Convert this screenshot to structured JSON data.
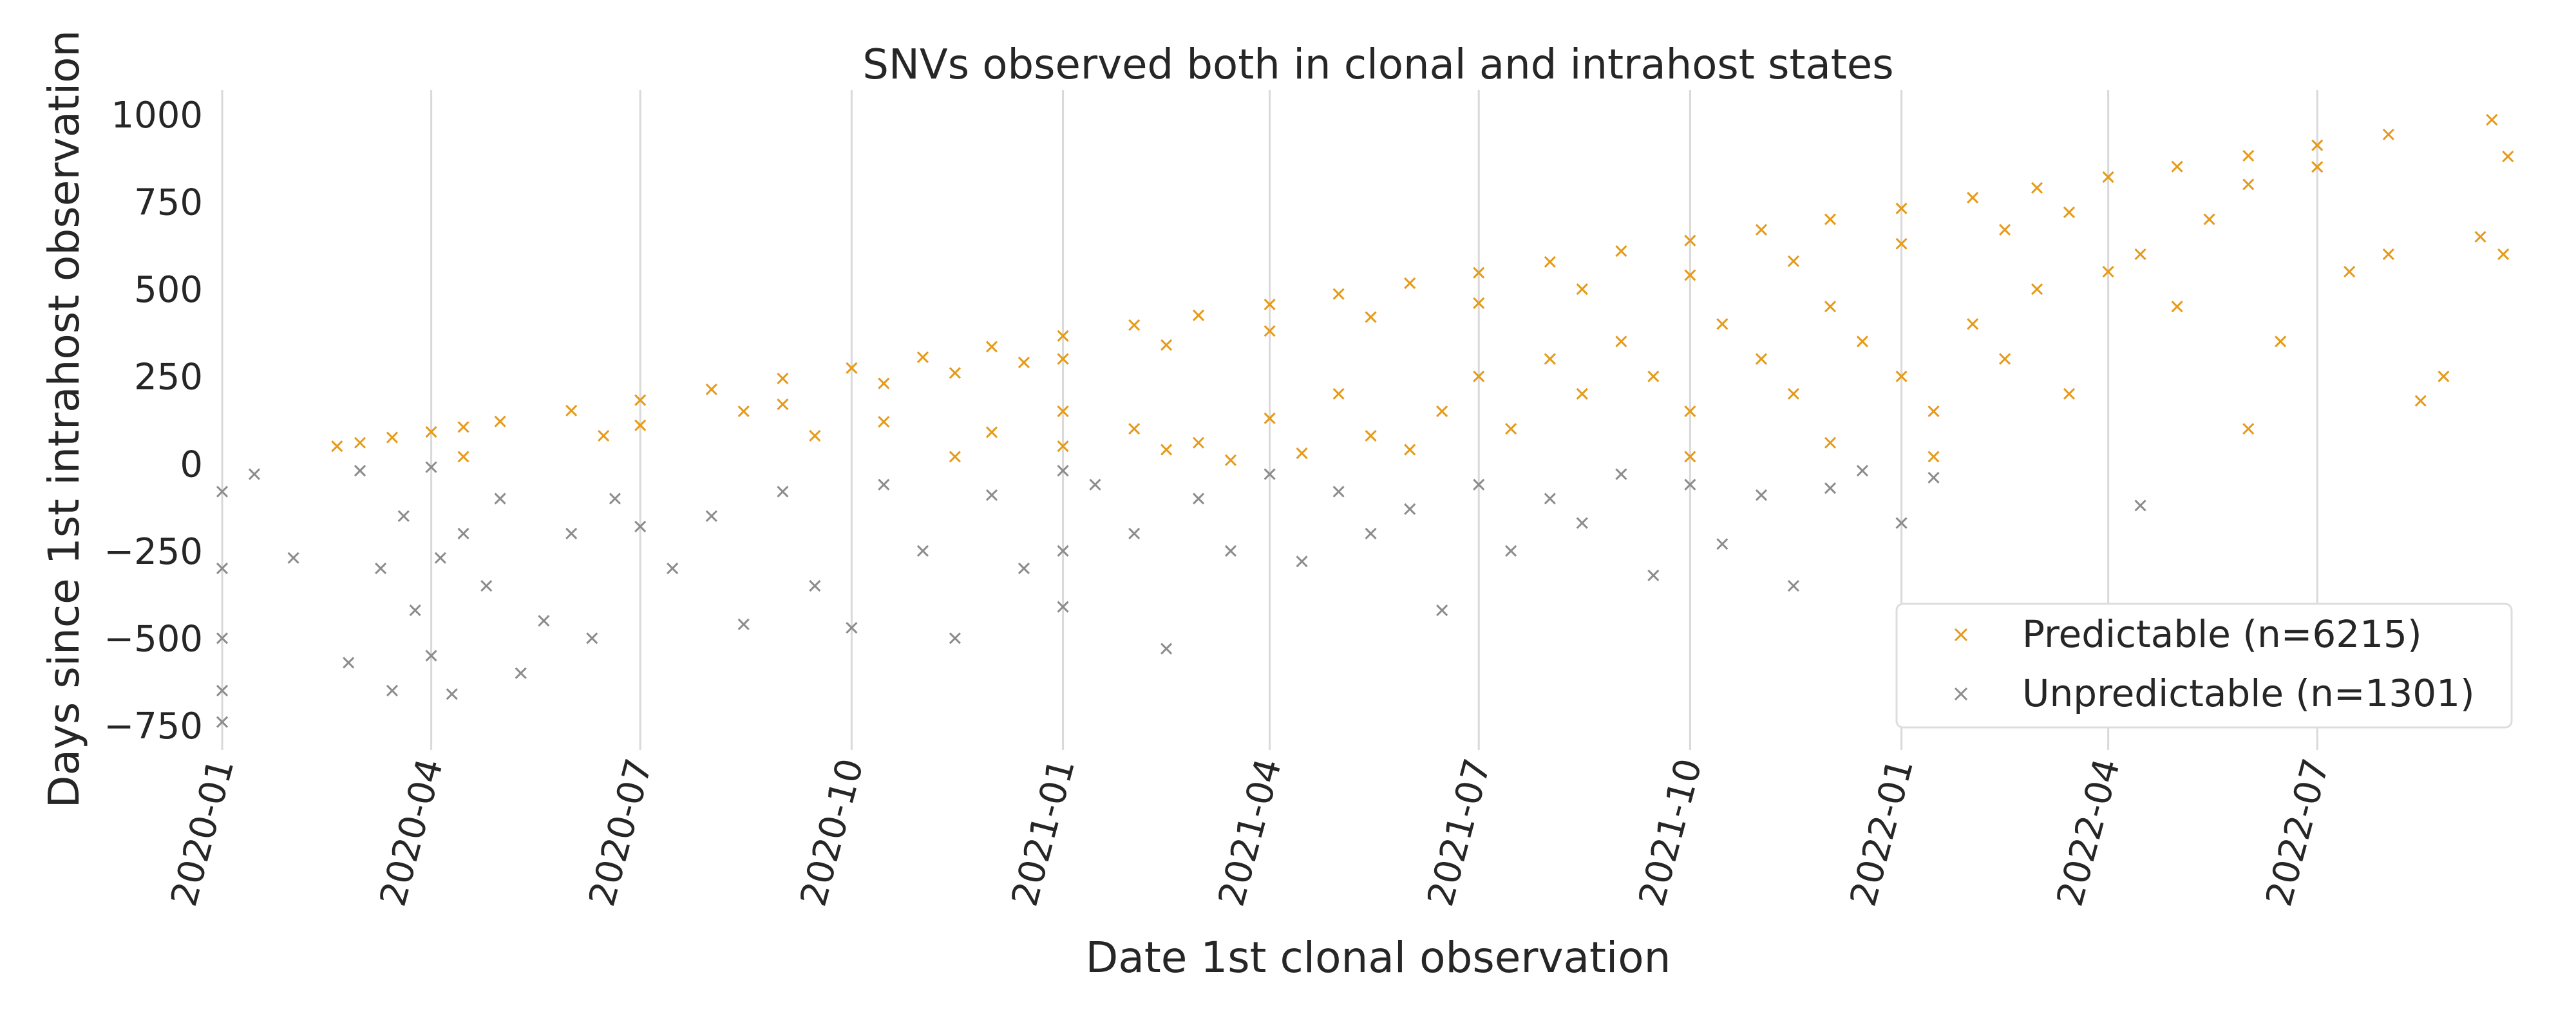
{
  "chart_data": {
    "type": "scatter",
    "title": "SNVs observed both in clonal and intrahost states",
    "xlabel": "Date 1st clonal observation",
    "ylabel": "Days since 1st intrahost observation",
    "marker": "x",
    "grid": "vertical only",
    "legend_position": "lower-right",
    "x_range": [
      "2020-01-01",
      "2022-09-25"
    ],
    "y_range": [
      -820,
      1070
    ],
    "x_ticks": [
      "2020-01",
      "2020-04",
      "2020-07",
      "2020-10",
      "2021-01",
      "2021-04",
      "2021-07",
      "2021-10",
      "2022-01",
      "2022-04",
      "2022-07"
    ],
    "y_ticks": [
      1000,
      750,
      500,
      250,
      0,
      -250,
      -500,
      -750
    ],
    "series": [
      {
        "name": "Predictable (n=6215)",
        "color": "#e69a17",
        "n": 6215,
        "points": [
          {
            "x": "2020-02-20",
            "y": 50
          },
          {
            "x": "2020-03-01",
            "y": 60
          },
          {
            "x": "2020-03-15",
            "y": 75
          },
          {
            "x": "2020-04-01",
            "y": 91
          },
          {
            "x": "2020-04-15",
            "y": 105
          },
          {
            "x": "2020-05-01",
            "y": 121
          },
          {
            "x": "2020-06-01",
            "y": 152
          },
          {
            "x": "2020-07-01",
            "y": 182
          },
          {
            "x": "2020-08-01",
            "y": 213
          },
          {
            "x": "2020-09-01",
            "y": 244
          },
          {
            "x": "2020-10-01",
            "y": 274
          },
          {
            "x": "2020-11-01",
            "y": 305
          },
          {
            "x": "2020-12-01",
            "y": 335
          },
          {
            "x": "2021-01-01",
            "y": 366
          },
          {
            "x": "2021-02-01",
            "y": 397
          },
          {
            "x": "2021-03-01",
            "y": 425
          },
          {
            "x": "2021-04-01",
            "y": 456
          },
          {
            "x": "2021-05-01",
            "y": 486
          },
          {
            "x": "2021-06-01",
            "y": 517
          },
          {
            "x": "2021-07-01",
            "y": 547
          },
          {
            "x": "2021-08-01",
            "y": 578
          },
          {
            "x": "2021-09-01",
            "y": 609
          },
          {
            "x": "2021-10-01",
            "y": 639
          },
          {
            "x": "2021-11-01",
            "y": 670
          },
          {
            "x": "2021-12-01",
            "y": 700
          },
          {
            "x": "2022-01-01",
            "y": 731
          },
          {
            "x": "2022-02-01",
            "y": 762
          },
          {
            "x": "2022-03-01",
            "y": 790
          },
          {
            "x": "2022-04-01",
            "y": 821
          },
          {
            "x": "2022-05-01",
            "y": 851
          },
          {
            "x": "2022-06-01",
            "y": 882
          },
          {
            "x": "2022-07-01",
            "y": 912
          },
          {
            "x": "2022-08-01",
            "y": 943
          },
          {
            "x": "2022-09-15",
            "y": 985
          },
          {
            "x": "2020-04-15",
            "y": 20
          },
          {
            "x": "2020-06-15",
            "y": 80
          },
          {
            "x": "2020-07-01",
            "y": 110
          },
          {
            "x": "2020-08-15",
            "y": 150
          },
          {
            "x": "2020-09-01",
            "y": 170
          },
          {
            "x": "2020-10-15",
            "y": 230
          },
          {
            "x": "2020-11-15",
            "y": 260
          },
          {
            "x": "2020-12-15",
            "y": 290
          },
          {
            "x": "2021-01-01",
            "y": 300
          },
          {
            "x": "2021-02-15",
            "y": 340
          },
          {
            "x": "2021-04-01",
            "y": 380
          },
          {
            "x": "2021-05-15",
            "y": 420
          },
          {
            "x": "2021-07-01",
            "y": 460
          },
          {
            "x": "2021-08-15",
            "y": 500
          },
          {
            "x": "2021-10-01",
            "y": 540
          },
          {
            "x": "2021-11-15",
            "y": 580
          },
          {
            "x": "2022-01-01",
            "y": 630
          },
          {
            "x": "2022-02-15",
            "y": 670
          },
          {
            "x": "2022-03-15",
            "y": 720
          },
          {
            "x": "2020-09-15",
            "y": 80
          },
          {
            "x": "2020-10-15",
            "y": 120
          },
          {
            "x": "2020-11-15",
            "y": 20
          },
          {
            "x": "2020-12-01",
            "y": 90
          },
          {
            "x": "2021-01-01",
            "y": 150
          },
          {
            "x": "2021-01-01",
            "y": 50
          },
          {
            "x": "2021-02-01",
            "y": 100
          },
          {
            "x": "2021-02-15",
            "y": 40
          },
          {
            "x": "2021-03-01",
            "y": 60
          },
          {
            "x": "2021-04-01",
            "y": 130
          },
          {
            "x": "2021-04-15",
            "y": 30
          },
          {
            "x": "2021-05-01",
            "y": 200
          },
          {
            "x": "2021-05-15",
            "y": 80
          },
          {
            "x": "2021-06-15",
            "y": 150
          },
          {
            "x": "2021-07-01",
            "y": 250
          },
          {
            "x": "2021-07-15",
            "y": 100
          },
          {
            "x": "2021-08-01",
            "y": 300
          },
          {
            "x": "2021-08-15",
            "y": 200
          },
          {
            "x": "2021-09-01",
            "y": 350
          },
          {
            "x": "2021-09-15",
            "y": 250
          },
          {
            "x": "2021-10-01",
            "y": 150
          },
          {
            "x": "2021-10-15",
            "y": 400
          },
          {
            "x": "2021-11-01",
            "y": 300
          },
          {
            "x": "2021-11-15",
            "y": 200
          },
          {
            "x": "2021-12-01",
            "y": 450
          },
          {
            "x": "2021-12-15",
            "y": 350
          },
          {
            "x": "2022-01-01",
            "y": 250
          },
          {
            "x": "2022-01-15",
            "y": 150
          },
          {
            "x": "2022-02-01",
            "y": 400
          },
          {
            "x": "2022-02-15",
            "y": 300
          },
          {
            "x": "2022-03-01",
            "y": 500
          },
          {
            "x": "2022-03-15",
            "y": 200
          },
          {
            "x": "2022-04-01",
            "y": 550
          },
          {
            "x": "2022-04-15",
            "y": 600
          },
          {
            "x": "2022-05-01",
            "y": 450
          },
          {
            "x": "2022-05-15",
            "y": 700
          },
          {
            "x": "2022-06-01",
            "y": 800
          },
          {
            "x": "2022-06-01",
            "y": 100
          },
          {
            "x": "2022-06-15",
            "y": 350
          },
          {
            "x": "2022-07-01",
            "y": 850
          },
          {
            "x": "2022-07-15",
            "y": 550
          },
          {
            "x": "2022-08-01",
            "y": 600
          },
          {
            "x": "2022-08-15",
            "y": 180
          },
          {
            "x": "2022-08-25",
            "y": 250
          },
          {
            "x": "2022-09-10",
            "y": 650
          },
          {
            "x": "2022-09-20",
            "y": 600
          },
          {
            "x": "2022-09-22",
            "y": 880
          },
          {
            "x": "2022-01-15",
            "y": 20
          },
          {
            "x": "2021-12-01",
            "y": 60
          },
          {
            "x": "2021-10-01",
            "y": 20
          },
          {
            "x": "2021-06-01",
            "y": 40
          },
          {
            "x": "2021-03-15",
            "y": 10
          }
        ]
      },
      {
        "name": "Unpredictable (n=1301)",
        "color": "#8c8c8c",
        "n": 1301,
        "points": [
          {
            "x": "2020-01-01",
            "y": -80
          },
          {
            "x": "2020-01-01",
            "y": -300
          },
          {
            "x": "2020-01-01",
            "y": -500
          },
          {
            "x": "2020-01-01",
            "y": -650
          },
          {
            "x": "2020-01-01",
            "y": -740
          },
          {
            "x": "2020-01-15",
            "y": -30
          },
          {
            "x": "2020-02-01",
            "y": -270
          },
          {
            "x": "2020-02-25",
            "y": -570
          },
          {
            "x": "2020-03-01",
            "y": -20
          },
          {
            "x": "2020-03-10",
            "y": -300
          },
          {
            "x": "2020-03-15",
            "y": -650
          },
          {
            "x": "2020-03-20",
            "y": -150
          },
          {
            "x": "2020-03-25",
            "y": -420
          },
          {
            "x": "2020-04-01",
            "y": -10
          },
          {
            "x": "2020-04-01",
            "y": -550
          },
          {
            "x": "2020-04-05",
            "y": -270
          },
          {
            "x": "2020-04-10",
            "y": -660
          },
          {
            "x": "2020-04-15",
            "y": -200
          },
          {
            "x": "2020-04-25",
            "y": -350
          },
          {
            "x": "2020-05-01",
            "y": -100
          },
          {
            "x": "2020-05-10",
            "y": -600
          },
          {
            "x": "2020-05-20",
            "y": -450
          },
          {
            "x": "2020-06-01",
            "y": -200
          },
          {
            "x": "2020-06-10",
            "y": -500
          },
          {
            "x": "2020-06-20",
            "y": -100
          },
          {
            "x": "2020-07-01",
            "y": -180
          },
          {
            "x": "2020-07-15",
            "y": -300
          },
          {
            "x": "2020-08-01",
            "y": -150
          },
          {
            "x": "2020-08-15",
            "y": -460
          },
          {
            "x": "2020-09-01",
            "y": -80
          },
          {
            "x": "2020-09-15",
            "y": -350
          },
          {
            "x": "2020-10-01",
            "y": -470
          },
          {
            "x": "2020-10-15",
            "y": -60
          },
          {
            "x": "2020-11-01",
            "y": -250
          },
          {
            "x": "2020-11-15",
            "y": -500
          },
          {
            "x": "2020-12-01",
            "y": -90
          },
          {
            "x": "2020-12-15",
            "y": -300
          },
          {
            "x": "2021-01-01",
            "y": -20
          },
          {
            "x": "2021-01-01",
            "y": -250
          },
          {
            "x": "2021-01-01",
            "y": -410
          },
          {
            "x": "2021-01-15",
            "y": -60
          },
          {
            "x": "2021-02-01",
            "y": -200
          },
          {
            "x": "2021-02-15",
            "y": -530
          },
          {
            "x": "2021-03-01",
            "y": -100
          },
          {
            "x": "2021-03-15",
            "y": -250
          },
          {
            "x": "2021-04-01",
            "y": -30
          },
          {
            "x": "2021-04-15",
            "y": -280
          },
          {
            "x": "2021-05-01",
            "y": -80
          },
          {
            "x": "2021-05-15",
            "y": -200
          },
          {
            "x": "2021-06-01",
            "y": -130
          },
          {
            "x": "2021-06-15",
            "y": -420
          },
          {
            "x": "2021-07-01",
            "y": -60
          },
          {
            "x": "2021-07-15",
            "y": -250
          },
          {
            "x": "2021-08-01",
            "y": -100
          },
          {
            "x": "2021-08-15",
            "y": -170
          },
          {
            "x": "2021-09-01",
            "y": -30
          },
          {
            "x": "2021-09-15",
            "y": -320
          },
          {
            "x": "2021-10-01",
            "y": -60
          },
          {
            "x": "2021-10-15",
            "y": -230
          },
          {
            "x": "2021-11-01",
            "y": -90
          },
          {
            "x": "2021-11-15",
            "y": -350
          },
          {
            "x": "2021-12-01",
            "y": -70
          },
          {
            "x": "2021-12-15",
            "y": -20
          },
          {
            "x": "2022-01-01",
            "y": -170
          },
          {
            "x": "2022-01-15",
            "y": -40
          },
          {
            "x": "2022-04-15",
            "y": -120
          }
        ]
      }
    ]
  }
}
